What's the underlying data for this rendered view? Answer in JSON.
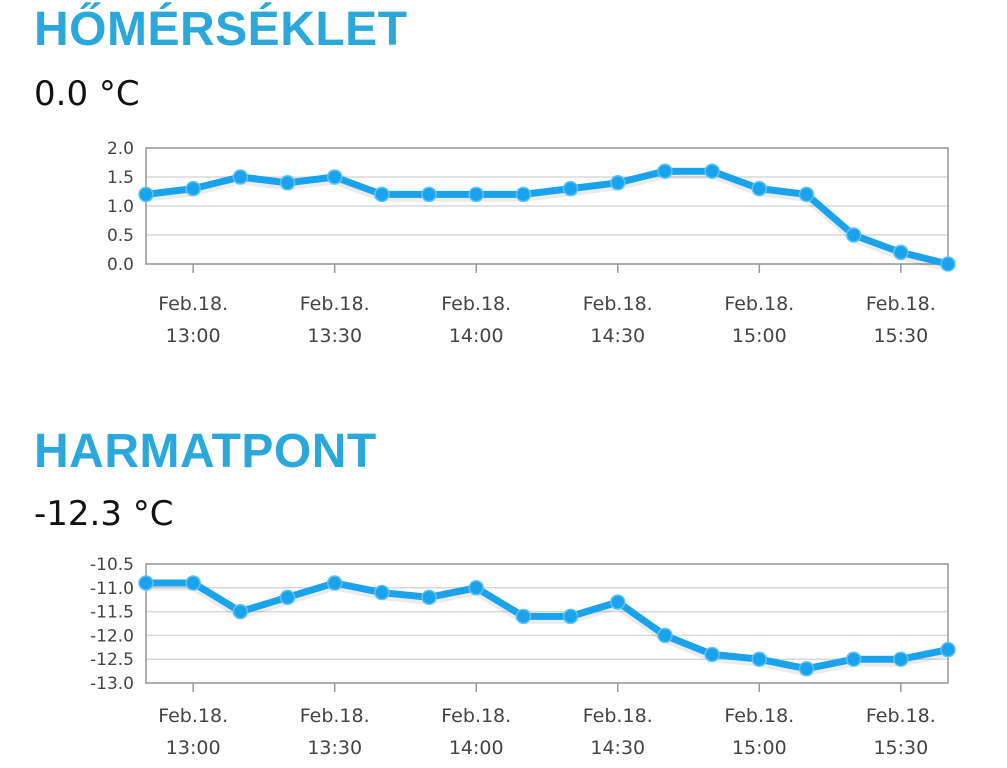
{
  "colors": {
    "accent": "#2aa8dc",
    "series": "#1aa3ec",
    "grid": "#d8d8d8",
    "axis": "#999999"
  },
  "sections": [
    {
      "title": "HŐMÉRSÉKLET",
      "value": "0.0 °C"
    },
    {
      "title": "HARMATPONT",
      "value": "-12.3 °C"
    }
  ],
  "chart_data": [
    {
      "type": "line",
      "title": "HŐMÉRSÉKLET",
      "x_ticks": [
        {
          "date": "Feb.18.",
          "time": "13:00"
        },
        {
          "date": "Feb.18.",
          "time": "13:30"
        },
        {
          "date": "Feb.18.",
          "time": "14:00"
        },
        {
          "date": "Feb.18.",
          "time": "14:30"
        },
        {
          "date": "Feb.18.",
          "time": "15:00"
        },
        {
          "date": "Feb.18.",
          "time": "15:30"
        }
      ],
      "y_ticks": [
        "2.0",
        "1.5",
        "1.0",
        "0.5",
        "0.0"
      ],
      "ylim": [
        0,
        2
      ],
      "x": [
        "12:50",
        "13:00",
        "13:10",
        "13:20",
        "13:30",
        "13:40",
        "13:50",
        "14:00",
        "14:10",
        "14:20",
        "14:30",
        "14:40",
        "14:50",
        "15:00",
        "15:10",
        "15:20",
        "15:30",
        "15:40"
      ],
      "values": [
        1.2,
        1.3,
        1.5,
        1.4,
        1.5,
        1.2,
        1.2,
        1.2,
        1.2,
        1.3,
        1.4,
        1.6,
        1.6,
        1.3,
        1.2,
        0.5,
        0.2,
        0.0
      ],
      "grid": true
    },
    {
      "type": "line",
      "title": "HARMATPONT",
      "x_ticks": [
        {
          "date": "Feb.18.",
          "time": "13:00"
        },
        {
          "date": "Feb.18.",
          "time": "13:30"
        },
        {
          "date": "Feb.18.",
          "time": "14:00"
        },
        {
          "date": "Feb.18.",
          "time": "14:30"
        },
        {
          "date": "Feb.18.",
          "time": "15:00"
        },
        {
          "date": "Feb.18.",
          "time": "15:30"
        }
      ],
      "y_ticks": [
        "-10.5",
        "-11.0",
        "-11.5",
        "-12.0",
        "-12.5",
        "-13.0"
      ],
      "ylim": [
        -13,
        -10.5
      ],
      "x": [
        "12:50",
        "13:00",
        "13:10",
        "13:20",
        "13:30",
        "13:40",
        "13:50",
        "14:00",
        "14:10",
        "14:20",
        "14:30",
        "14:40",
        "14:50",
        "15:00",
        "15:10",
        "15:20",
        "15:30",
        "15:40"
      ],
      "values": [
        -10.9,
        -10.9,
        -11.5,
        -11.2,
        -10.9,
        -11.1,
        -11.2,
        -11.0,
        -11.6,
        -11.6,
        -11.3,
        -12.0,
        -12.4,
        -12.5,
        -12.7,
        -12.5,
        -12.5,
        -12.3
      ],
      "grid": true
    }
  ]
}
